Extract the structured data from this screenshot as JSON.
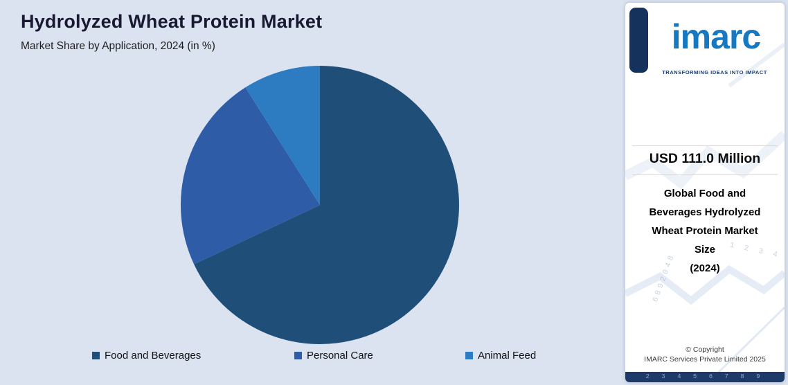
{
  "page": {
    "background_color": "#dbe3f0"
  },
  "header": {
    "title": "Hydrolyzed Wheat Protein Market",
    "subtitle": "Market Share by Application, 2024 (in %)"
  },
  "chart_data": {
    "type": "pie",
    "title": "Hydrolyzed Wheat Protein Market — Market Share by Application, 2024 (in %)",
    "categories": [
      "Food and Beverages",
      "Personal Care",
      "Animal Feed"
    ],
    "values": [
      68,
      23,
      9
    ],
    "colors": [
      "#1f4e79",
      "#2e5ca6",
      "#2d7bc0"
    ],
    "start_angle_deg": 0,
    "direction": "clockwise",
    "legend_position": "bottom",
    "data_labels": "none"
  },
  "sidebar": {
    "logo_text": "imarc",
    "tagline": "TRANSFORMING IDEAS INTO IMPACT",
    "stat_value": "USD 111.0 Million",
    "stat_label_lines": {
      "0": "Global Food and",
      "1": "Beverages Hydrolyzed",
      "2": "Wheat Protein Market",
      "3": "Size",
      "4": "(2024)"
    },
    "copyright_line1": "© Copyright",
    "copyright_line2": "IMARC Services Private Limited 2025",
    "decor": {
      "numbers_right": "1 2 3 4",
      "numbers_diag": "6892048",
      "numbers_bottom": "2 3 4 5 6 7 8 9"
    }
  }
}
